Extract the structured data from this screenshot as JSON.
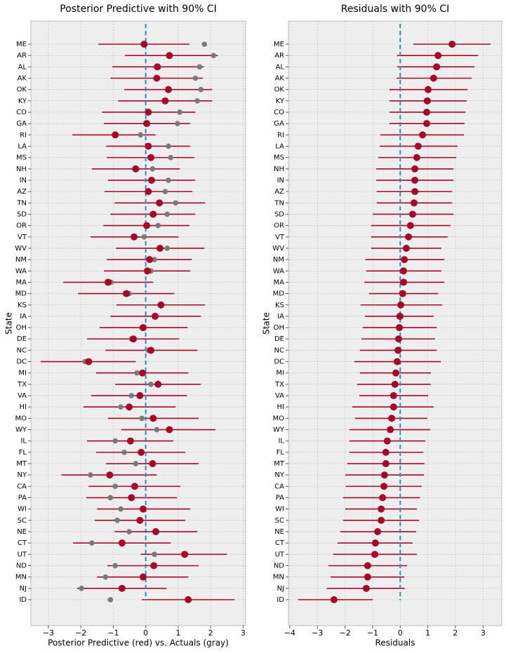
{
  "chart_data": [
    {
      "type": "interval",
      "title": "Posterior Predictive with 90% CI",
      "xlabel": "Posterior Predictive (red) vs. Actuals (gray)",
      "ylabel": "State",
      "categories": [
        "ME",
        "AR",
        "AL",
        "AK",
        "OK",
        "KY",
        "CO",
        "GA",
        "RI",
        "LA",
        "MS",
        "NH",
        "IN",
        "AZ",
        "TN",
        "SD",
        "OR",
        "VT",
        "WV",
        "NM",
        "WA",
        "MA",
        "MD",
        "KS",
        "IA",
        "OH",
        "DE",
        "NC",
        "DC",
        "MI",
        "TX",
        "VA",
        "HI",
        "MO",
        "WY",
        "IL",
        "FL",
        "MT",
        "NY",
        "CA",
        "PA",
        "WI",
        "SC",
        "NE",
        "CT",
        "UT",
        "ND",
        "MN",
        "NJ",
        "ID"
      ],
      "values": [
        -0.05,
        0.73,
        0.36,
        0.34,
        0.7,
        0.6,
        0.08,
        0.03,
        -0.94,
        0.08,
        0.16,
        -0.31,
        0.18,
        0.08,
        0.42,
        0.23,
        0.03,
        -0.36,
        0.44,
        0.12,
        0.05,
        -1.16,
        -0.6,
        0.47,
        0.29,
        -0.08,
        -0.38,
        0.16,
        -1.76,
        -0.1,
        0.38,
        -0.18,
        -0.51,
        0.23,
        0.73,
        -0.47,
        -0.14,
        0.21,
        -1.11,
        -0.34,
        -0.44,
        -0.08,
        -0.18,
        0.31,
        -0.73,
        1.2,
        0.25,
        -0.08,
        -0.73,
        1.31
      ],
      "lower": [
        -1.46,
        -0.64,
        -1.03,
        -1.09,
        -0.66,
        -0.85,
        -1.35,
        -1.29,
        -2.26,
        -1.22,
        -1.2,
        -1.66,
        -1.16,
        -1.27,
        -0.96,
        -1.09,
        -1.31,
        -1.7,
        -0.92,
        -1.2,
        -1.29,
        -2.54,
        -2.09,
        -0.9,
        -1.09,
        -1.42,
        -1.81,
        -1.24,
        -3.24,
        -1.53,
        -0.94,
        -1.68,
        -1.92,
        -1.16,
        -0.75,
        -1.81,
        -1.53,
        -1.22,
        -2.6,
        -1.76,
        -1.83,
        -1.5,
        -1.57,
        -0.96,
        -2.24,
        -0.16,
        -1.18,
        -1.5,
        -2.11,
        -0.12
      ],
      "upper": [
        1.35,
        2.22,
        1.79,
        1.76,
        2.05,
        2.05,
        1.53,
        1.37,
        0.31,
        1.37,
        1.5,
        1.05,
        1.53,
        1.44,
        1.83,
        1.53,
        1.35,
        1.01,
        1.81,
        1.42,
        1.37,
        0.23,
        0.88,
        1.83,
        1.7,
        1.29,
        1.03,
        1.59,
        -0.31,
        1.31,
        1.7,
        1.27,
        0.92,
        1.63,
        2.15,
        0.85,
        1.22,
        1.63,
        0.34,
        1.07,
        0.96,
        1.37,
        1.22,
        1.59,
        0.77,
        2.5,
        1.63,
        1.31,
        0.64,
        2.74
      ],
      "actual": [
        1.81,
        2.09,
        1.66,
        1.53,
        1.7,
        1.59,
        1.05,
        0.98,
        -0.16,
        0.7,
        0.77,
        0.21,
        0.7,
        0.6,
        0.92,
        0.66,
        0.38,
        -0.05,
        0.66,
        0.27,
        0.16,
        -1.07,
        -0.51,
        0.47,
        0.29,
        -0.12,
        -0.44,
        0.08,
        -1.87,
        -0.27,
        0.16,
        -0.44,
        -0.77,
        -0.12,
        0.34,
        -0.94,
        -0.66,
        -0.31,
        -1.7,
        -0.94,
        -1.09,
        -0.77,
        -0.88,
        -0.51,
        -1.66,
        0.27,
        -0.94,
        -1.24,
        -1.98,
        -1.09
      ],
      "color": "#a60628",
      "actual_color": "#7a7a7a",
      "vline": 0,
      "vline_color": "#348abd",
      "xlim": [
        -3.54,
        3.08
      ],
      "xticks": [
        {
          "value": -3,
          "label": "−3"
        },
        {
          "value": -2,
          "label": "−2"
        },
        {
          "value": -1,
          "label": "−1"
        },
        0,
        1,
        2,
        3
      ],
      "grid": true
    },
    {
      "type": "interval",
      "title": "Residuals with 90% CI",
      "xlabel": "Residuals",
      "ylabel": "State",
      "categories": [
        "ME",
        "AR",
        "AL",
        "AK",
        "OK",
        "KY",
        "CO",
        "GA",
        "RI",
        "LA",
        "MS",
        "NH",
        "IN",
        "AZ",
        "TN",
        "SD",
        "OR",
        "VT",
        "WV",
        "NM",
        "WA",
        "MA",
        "MD",
        "KS",
        "IA",
        "OH",
        "DE",
        "NC",
        "DC",
        "MI",
        "TX",
        "VA",
        "HI",
        "MO",
        "WY",
        "IL",
        "FL",
        "MT",
        "NY",
        "CA",
        "PA",
        "WI",
        "SC",
        "NE",
        "CT",
        "UT",
        "ND",
        "MN",
        "NJ",
        "ID"
      ],
      "values": [
        1.88,
        1.37,
        1.32,
        1.21,
        1.01,
        0.98,
        0.96,
        0.96,
        0.81,
        0.65,
        0.6,
        0.53,
        0.53,
        0.53,
        0.5,
        0.45,
        0.37,
        0.3,
        0.22,
        0.15,
        0.12,
        0.12,
        0.09,
        0.02,
        -0.01,
        -0.03,
        -0.06,
        -0.08,
        -0.11,
        -0.16,
        -0.19,
        -0.24,
        -0.24,
        -0.31,
        -0.36,
        -0.47,
        -0.52,
        -0.52,
        -0.57,
        -0.59,
        -0.64,
        -0.69,
        -0.69,
        -0.82,
        -0.9,
        -0.92,
        -1.18,
        -1.18,
        -1.23,
        -2.4
      ],
      "lower": [
        0.48,
        -0.11,
        -0.11,
        -0.13,
        -0.39,
        -0.39,
        -0.39,
        -0.39,
        -0.72,
        -0.74,
        -0.8,
        -0.87,
        -0.87,
        -0.85,
        -0.85,
        -1.0,
        -1.05,
        -1.05,
        -1.05,
        -1.26,
        -1.23,
        -1.3,
        -1.13,
        -1.44,
        -1.28,
        -1.36,
        -1.41,
        -1.46,
        -1.66,
        -1.46,
        -1.56,
        -1.48,
        -1.74,
        -1.64,
        -1.84,
        -1.84,
        -1.84,
        -1.92,
        -1.99,
        -1.97,
        -2.07,
        -1.99,
        -2.07,
        -2.17,
        -2.27,
        -2.43,
        -2.6,
        -2.53,
        -2.66,
        -3.7
      ],
      "upper": [
        3.27,
        2.82,
        2.69,
        2.59,
        2.44,
        2.41,
        2.36,
        2.33,
        2.31,
        2.08,
        2.03,
        1.93,
        1.93,
        1.88,
        1.88,
        1.93,
        1.82,
        1.72,
        1.49,
        1.6,
        1.49,
        1.6,
        1.37,
        1.52,
        1.21,
        1.32,
        1.26,
        1.32,
        1.47,
        1.11,
        1.11,
        1.01,
        1.21,
        0.98,
        1.09,
        0.91,
        0.83,
        0.88,
        0.86,
        0.78,
        0.71,
        0.6,
        0.68,
        0.58,
        0.45,
        0.6,
        0.25,
        0.15,
        0.17,
        -1.0
      ],
      "color": "#a60628",
      "vline": 0,
      "vline_color": "#348abd",
      "xlim": [
        -4.05,
        3.68
      ],
      "xticks": [
        {
          "value": -4,
          "label": "−4"
        },
        {
          "value": -3,
          "label": "−3"
        },
        {
          "value": -2,
          "label": "−2"
        },
        {
          "value": -1,
          "label": "−1"
        },
        0,
        1,
        2,
        3
      ],
      "grid": true
    }
  ]
}
